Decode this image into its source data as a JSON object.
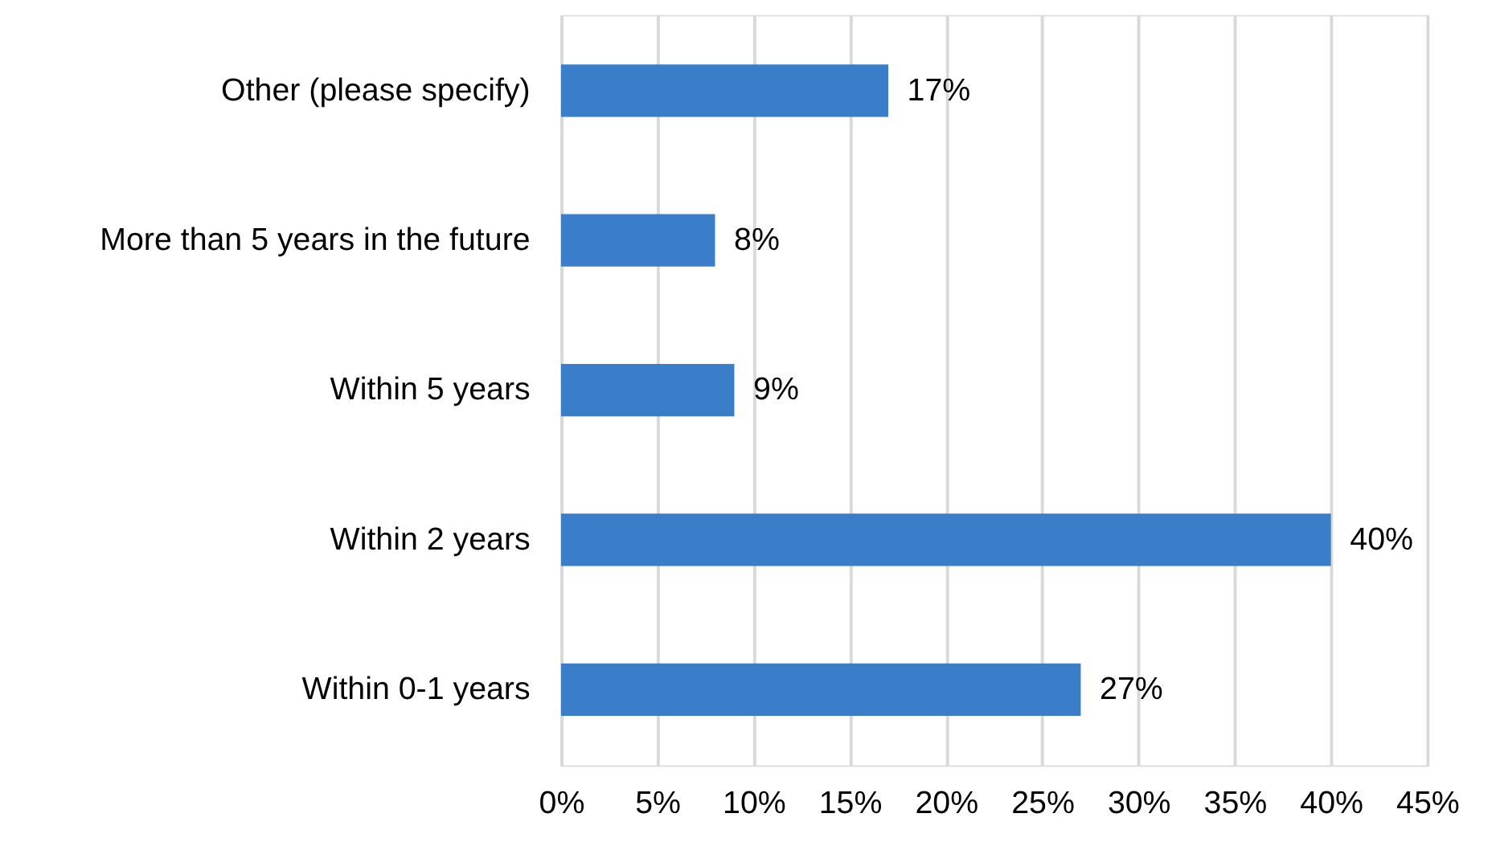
{
  "chart_data": {
    "type": "bar",
    "orientation": "horizontal",
    "categories": [
      "Other (please specify)",
      "More than 5 years in the future",
      "Within 5 years",
      "Within 2 years",
      "Within 0-1 years"
    ],
    "values": [
      17,
      8,
      9,
      40,
      27
    ],
    "value_labels": [
      "17%",
      "8%",
      "9%",
      "40%",
      "27%"
    ],
    "color": "#3a7dc9",
    "xlim": [
      0,
      45
    ],
    "xticks": [
      {
        "value": 0,
        "label": "0%"
      },
      {
        "value": 5,
        "label": "5%"
      },
      {
        "value": 10,
        "label": "10%"
      },
      {
        "value": 15,
        "label": "15%"
      },
      {
        "value": 20,
        "label": "20%"
      },
      {
        "value": 25,
        "label": "25%"
      },
      {
        "value": 30,
        "label": "30%"
      },
      {
        "value": 35,
        "label": "35%"
      },
      {
        "value": 40,
        "label": "40%"
      },
      {
        "value": 45,
        "label": "45%"
      }
    ],
    "grid": "x"
  }
}
